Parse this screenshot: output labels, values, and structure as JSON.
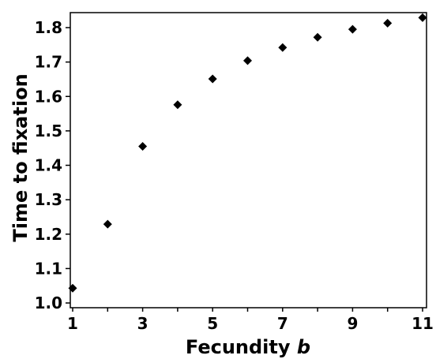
{
  "chart_data": {
    "type": "scatter",
    "xlabel": "Fecundity",
    "xlabel_symbol": "b",
    "ylabel": "Time to fixation",
    "xlim": [
      1,
      11
    ],
    "ylim": [
      1.0,
      1.85
    ],
    "x_ticks": [
      1,
      3,
      5,
      7,
      9,
      11
    ],
    "x_tick_labels": [
      "1",
      "3",
      "5",
      "7",
      "9",
      "11"
    ],
    "y_ticks": [
      1.0,
      1.1,
      1.2,
      1.3,
      1.4,
      1.5,
      1.6,
      1.7,
      1.8
    ],
    "y_tick_labels": [
      "1.0",
      "1.1",
      "1.2",
      "1.3",
      "1.4",
      "1.5",
      "1.6",
      "1.7",
      "1.8"
    ],
    "grid": false,
    "marker": "diamond",
    "marker_color": "#000000",
    "series": [
      {
        "x": [
          1,
          2,
          3,
          4,
          5,
          6,
          7,
          8,
          9,
          10,
          11
        ],
        "y": [
          1.043,
          1.229,
          1.455,
          1.576,
          1.651,
          1.704,
          1.742,
          1.772,
          1.795,
          1.813,
          1.829
        ]
      }
    ]
  }
}
